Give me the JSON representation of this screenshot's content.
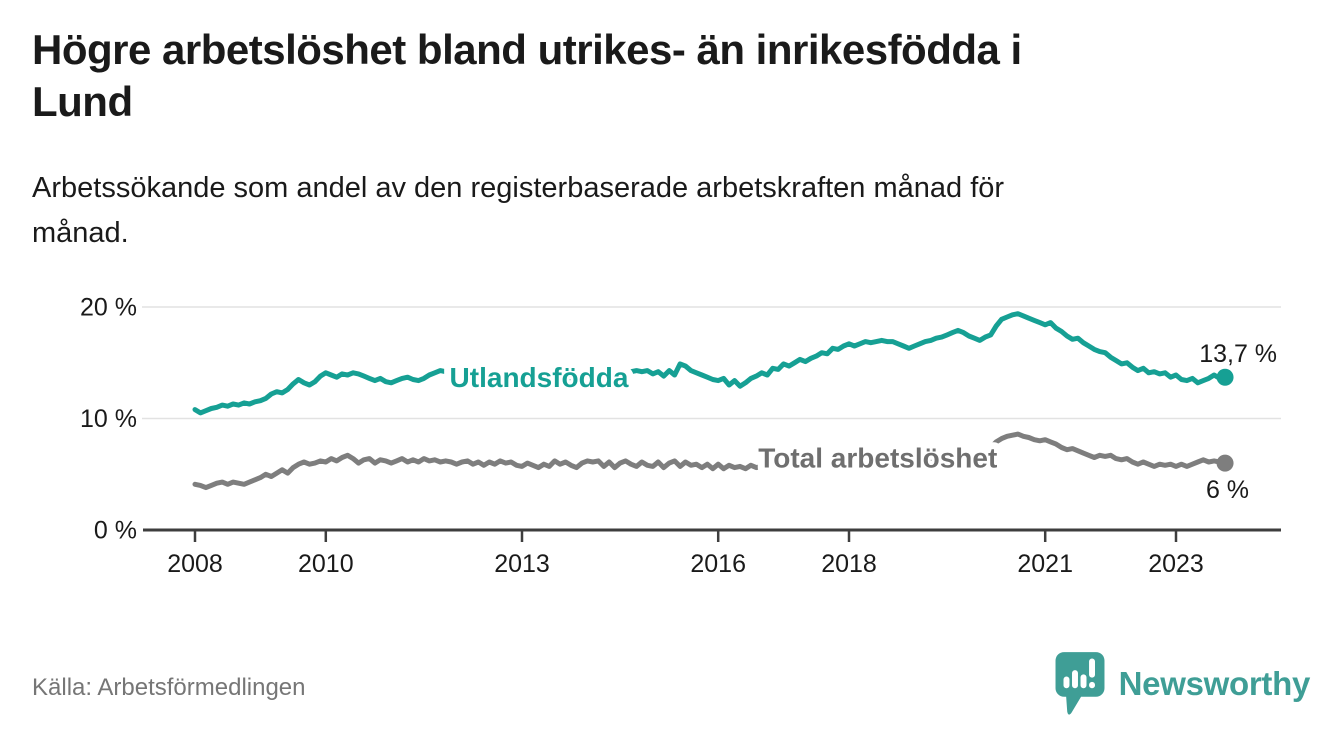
{
  "header": {
    "title": "Högre arbetslöshet bland utrikes- än inrikesfödda i\nLund",
    "subtitle": "Arbetssökande som andel av den registerbaserade arbetskraften månad för\nmånad."
  },
  "footer": {
    "source": "Källa: Arbetsförmedlingen",
    "brand": "Newsworthy"
  },
  "colors": {
    "accent_teal": "#16a094",
    "line_gray": "#7e7e7e",
    "label_gray": "#6f6f6f",
    "text": "#1a1a1a",
    "muted_text": "#767676",
    "grid": "#e2e2e2",
    "axis": "#3e3e3e",
    "brand_teal": "#3f9e96",
    "background": "#ffffff"
  },
  "chart_data": {
    "type": "line",
    "title": "Högre arbetslöshet bland utrikes- än inrikesfödda i Lund",
    "subtitle": "Arbetssökande som andel av den registerbaserade arbetskraften månad för månad.",
    "source": "Källa: Arbetsförmedlingen",
    "x_unit": "month",
    "x_start_year": 2008.0,
    "x_range": [
      2008.0,
      2023.75
    ],
    "ylim": [
      0,
      22
    ],
    "grid_values": [
      10,
      20
    ],
    "y_tick_labels": [
      "0 %",
      "10 %",
      "20 %"
    ],
    "x_ticks": [
      "2008",
      "2010",
      "2013",
      "2016",
      "2018",
      "2021",
      "2023"
    ],
    "legend_position": "inline-on-line",
    "grid": "horizontal-only",
    "series": [
      {
        "name": "Utlandsfödda",
        "color": "#16a094",
        "end_label": "13,7 %",
        "end_value": 13.7,
        "values": [
          10.8,
          10.5,
          10.7,
          10.9,
          11.0,
          11.2,
          11.1,
          11.3,
          11.2,
          11.4,
          11.3,
          11.5,
          11.6,
          11.8,
          12.2,
          12.4,
          12.3,
          12.6,
          13.1,
          13.5,
          13.2,
          13.0,
          13.3,
          13.8,
          14.1,
          13.9,
          13.7,
          14.0,
          13.9,
          14.1,
          14.0,
          13.8,
          13.6,
          13.4,
          13.6,
          13.3,
          13.2,
          13.4,
          13.6,
          13.7,
          13.5,
          13.4,
          13.6,
          13.9,
          14.1,
          14.3,
          14.2,
          14.3,
          14.1,
          13.9,
          14.0,
          13.8,
          13.7,
          13.9,
          14.1,
          14.0,
          13.8,
          13.7,
          13.9,
          13.8,
          13.6,
          13.5,
          13.7,
          13.6,
          13.4,
          13.6,
          13.8,
          13.9,
          13.7,
          13.6,
          13.8,
          13.9,
          13.8,
          13.6,
          13.8,
          14.0,
          13.9,
          14.1,
          14.2,
          14.0,
          14.2,
          14.3,
          14.2,
          14.3,
          14.0,
          14.2,
          13.8,
          14.3,
          13.9,
          14.9,
          14.7,
          14.3,
          14.1,
          13.9,
          13.7,
          13.5,
          13.4,
          13.6,
          13.0,
          13.4,
          12.9,
          13.2,
          13.6,
          13.8,
          14.1,
          13.9,
          14.5,
          14.4,
          14.9,
          14.7,
          15.0,
          15.3,
          15.1,
          15.4,
          15.6,
          15.9,
          15.8,
          16.3,
          16.2,
          16.5,
          16.7,
          16.5,
          16.7,
          16.9,
          16.8,
          16.9,
          17.0,
          16.9,
          16.9,
          16.7,
          16.5,
          16.3,
          16.5,
          16.7,
          16.9,
          17.0,
          17.2,
          17.3,
          17.5,
          17.7,
          17.9,
          17.7,
          17.4,
          17.2,
          17.0,
          17.3,
          17.5,
          18.3,
          18.9,
          19.1,
          19.3,
          19.4,
          19.2,
          19.0,
          18.8,
          18.6,
          18.4,
          18.6,
          18.1,
          17.8,
          17.4,
          17.1,
          17.2,
          16.8,
          16.5,
          16.2,
          16.0,
          15.9,
          15.5,
          15.2,
          14.9,
          15.0,
          14.6,
          14.3,
          14.5,
          14.1,
          14.2,
          14.0,
          14.1,
          13.7,
          13.9,
          13.5,
          13.4,
          13.6,
          13.2,
          13.4,
          13.6,
          13.9,
          13.6,
          13.7
        ]
      },
      {
        "name": "Total arbetslöshet",
        "color": "#7e7e7e",
        "end_label": "6 %",
        "end_value": 6.0,
        "values": [
          4.1,
          4.0,
          3.8,
          4.0,
          4.2,
          4.3,
          4.1,
          4.3,
          4.2,
          4.1,
          4.3,
          4.5,
          4.7,
          5.0,
          4.8,
          5.1,
          5.4,
          5.1,
          5.6,
          5.9,
          6.1,
          5.9,
          6.0,
          6.2,
          6.1,
          6.4,
          6.2,
          6.5,
          6.7,
          6.4,
          6.0,
          6.3,
          6.4,
          6.0,
          6.3,
          6.2,
          6.0,
          6.2,
          6.4,
          6.1,
          6.3,
          6.1,
          6.4,
          6.2,
          6.3,
          6.1,
          6.2,
          6.1,
          5.9,
          6.1,
          6.2,
          5.9,
          6.1,
          5.8,
          6.1,
          5.9,
          6.2,
          6.0,
          6.1,
          5.8,
          5.7,
          6.0,
          5.8,
          5.6,
          5.9,
          5.7,
          6.2,
          5.9,
          6.1,
          5.8,
          5.6,
          6.0,
          6.2,
          6.1,
          6.2,
          5.7,
          6.1,
          5.6,
          6.0,
          6.2,
          5.9,
          5.7,
          6.1,
          5.8,
          5.7,
          6.1,
          5.6,
          6.0,
          6.2,
          5.7,
          6.1,
          5.8,
          5.9,
          5.6,
          5.9,
          5.5,
          5.9,
          5.5,
          5.8,
          5.6,
          5.7,
          5.5,
          5.8,
          5.6,
          5.7,
          5.5,
          5.6,
          5.7,
          5.6,
          5.8,
          5.5,
          5.7,
          5.9,
          5.6,
          5.8,
          5.7,
          5.9,
          5.8,
          6.0,
          5.9,
          5.8,
          6.0,
          5.9,
          6.1,
          6.0,
          5.9,
          6.1,
          6.0,
          6.2,
          6.1,
          6.3,
          6.2,
          6.1,
          6.3,
          6.2,
          6.4,
          6.3,
          6.5,
          6.4,
          6.6,
          6.5,
          6.4,
          6.6,
          6.7,
          6.8,
          7.0,
          7.4,
          7.9,
          8.2,
          8.4,
          8.5,
          8.6,
          8.4,
          8.3,
          8.1,
          8.0,
          8.1,
          7.9,
          7.7,
          7.4,
          7.2,
          7.3,
          7.1,
          6.9,
          6.7,
          6.5,
          6.7,
          6.6,
          6.7,
          6.4,
          6.3,
          6.4,
          6.1,
          5.9,
          6.1,
          5.9,
          5.7,
          5.9,
          5.8,
          5.9,
          5.7,
          5.9,
          5.7,
          5.9,
          6.1,
          6.3,
          6.1,
          6.2,
          6.1,
          6.0
        ]
      }
    ],
    "annotations": [
      {
        "text": "Utlandsfödda",
        "year": 2013.26,
        "value": 13.7,
        "color": "#16a094"
      },
      {
        "text": "Total arbetslöshet",
        "year": 2018.44,
        "value": 6.5,
        "color": "#6f6f6f"
      }
    ]
  }
}
